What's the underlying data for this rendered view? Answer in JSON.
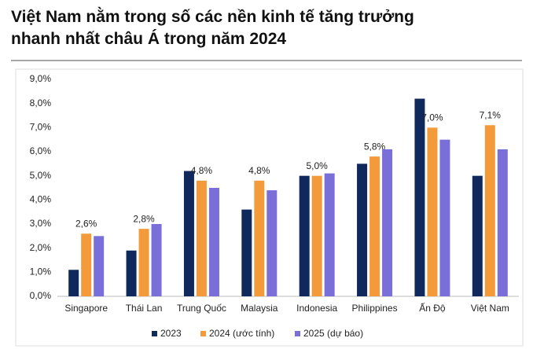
{
  "chart_data": {
    "type": "bar",
    "title": [
      "Việt Nam nằm trong số các nền kinh tế tăng trưởng",
      "nhanh nhất châu Á trong năm 2024"
    ],
    "categories": [
      "Singapore",
      "Thái Lan",
      "Trung Quốc",
      "Malaysia",
      "Indonesia",
      "Philippines",
      "Ấn Độ",
      "Việt Nam"
    ],
    "series": [
      {
        "name": "2023",
        "color": "#10295c",
        "values": [
          1.1,
          1.9,
          5.2,
          3.6,
          5.0,
          5.5,
          8.2,
          5.0
        ]
      },
      {
        "name": "2024 (ước tính)",
        "color": "#f39a3b",
        "values": [
          2.6,
          2.8,
          4.8,
          4.8,
          5.0,
          5.8,
          7.0,
          7.1
        ],
        "value_labels": [
          "2,6%",
          "2,8%",
          "4,8%",
          "4,8%",
          "5,0%",
          "5,8%",
          "7,0%",
          "7,1%"
        ]
      },
      {
        "name": "2025 (dự báo)",
        "color": "#7a6ed8",
        "values": [
          2.5,
          3.0,
          4.5,
          4.4,
          5.1,
          6.1,
          6.5,
          6.1
        ]
      }
    ],
    "ylim": [
      0,
      9
    ],
    "yticks": [
      {
        "value": 0,
        "label": "0,0%"
      },
      {
        "value": 1,
        "label": "1,0%"
      },
      {
        "value": 2,
        "label": "2,0%"
      },
      {
        "value": 3,
        "label": "3,0%"
      },
      {
        "value": 4,
        "label": "4,0%"
      },
      {
        "value": 5,
        "label": "5,0%"
      },
      {
        "value": 6,
        "label": "6,0%"
      },
      {
        "value": 7,
        "label": "7,0%"
      },
      {
        "value": 8,
        "label": "8,0%"
      },
      {
        "value": 9,
        "label": "9,0%"
      }
    ],
    "grid": false,
    "legend": "bottom"
  }
}
